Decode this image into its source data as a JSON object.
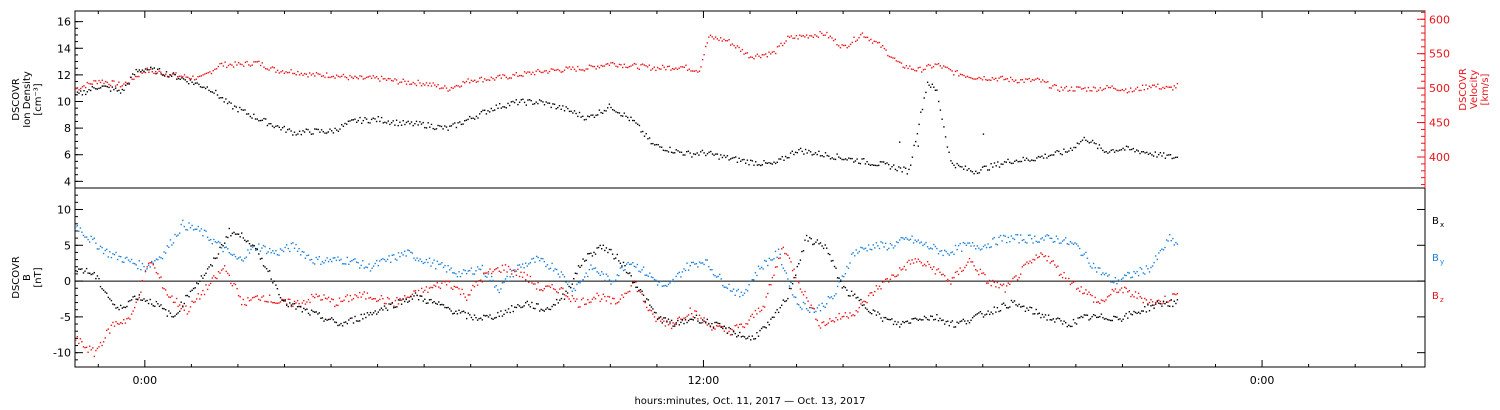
{
  "xaxis": {
    "title": "hours:minutes, Oct. 11, 2017 — Oct. 13, 2017",
    "range_hours": [
      -1.5,
      27.5
    ],
    "tick_labels": [
      {
        "hour": 0,
        "label": "0:00"
      },
      {
        "hour": 12,
        "label": "12:00"
      },
      {
        "hour": 24,
        "label": "0:00"
      }
    ]
  },
  "colors": {
    "black": "#000000",
    "red": "#e8151b",
    "blue": "#1a7fd6"
  },
  "chart_data": [
    {
      "type": "scatter",
      "name": "density-velocity-panel",
      "ylabel_left": [
        "DSCOVR",
        "Ion Density",
        "[cm⁻³]"
      ],
      "ylabel_right": [
        "DSCOVR",
        "Velocity",
        "[km/s]"
      ],
      "ylim_left": [
        3.5,
        16.8
      ],
      "ylim_right": [
        355,
        612
      ],
      "left_ticks": [
        4,
        6,
        8,
        10,
        12,
        14,
        16
      ],
      "right_ticks": [
        400,
        450,
        500,
        550,
        600
      ],
      "series": [
        {
          "axis": "left",
          "color": "#000000",
          "x": [
            -1.5,
            -1,
            -0.5,
            -0.2,
            0,
            0.3,
            0.6,
            1,
            1.4,
            1.8,
            2.1,
            2.4,
            2.8,
            3.2,
            3.6,
            4,
            4.5,
            5,
            5.5,
            6,
            6.5,
            7,
            7.5,
            8,
            8.5,
            9,
            9.5,
            10,
            10.5,
            10.9,
            11.2,
            11.4,
            11.7,
            12,
            12.5,
            13,
            13.5,
            14,
            14.5,
            15,
            15.5,
            16,
            16.4,
            16.8,
            17,
            17.3,
            17.5,
            17.8,
            18.2,
            18.6,
            19,
            19.4,
            19.8,
            20.2,
            20.6,
            21,
            21.4,
            21.8,
            22.2
          ],
          "y": [
            10.5,
            11.2,
            10.8,
            12.3,
            12.5,
            12.3,
            12.0,
            11.5,
            11.0,
            9.8,
            9.3,
            8.8,
            8.2,
            7.7,
            7.8,
            7.8,
            8.6,
            8.7,
            8.4,
            8.3,
            8.0,
            8.8,
            9.6,
            10.0,
            10.0,
            9.5,
            8.8,
            9.7,
            8.5,
            6.8,
            6.5,
            6.3,
            6.1,
            6.2,
            5.8,
            5.5,
            5.3,
            6.4,
            6.1,
            5.8,
            5.5,
            5.2,
            4.8,
            11.5,
            10.8,
            5.5,
            5.1,
            4.8,
            5.2,
            5.6,
            5.7,
            6.0,
            6.3,
            7.3,
            6.3,
            6.5,
            6.3,
            6.0,
            5.8
          ]
        },
        {
          "axis": "right",
          "color": "#e8151b",
          "x": [
            -1.5,
            -1,
            -0.5,
            0,
            0.4,
            0.8,
            1.2,
            1.6,
            2,
            2.4,
            2.8,
            3.2,
            3.6,
            4,
            4.5,
            5,
            5.5,
            6,
            6.5,
            7,
            7.5,
            8,
            8.5,
            9,
            9.5,
            10,
            10.5,
            11,
            11.5,
            11.9,
            12.1,
            12.5,
            13,
            13.5,
            13.8,
            14.2,
            14.6,
            15,
            15.4,
            15.8,
            16.2,
            16.6,
            17,
            17.4,
            17.8,
            18.3,
            18.8,
            19.2,
            19.6,
            20,
            20.4,
            20.8,
            21.2,
            21.6,
            22,
            22.2
          ],
          "y": [
            500,
            512,
            505,
            527,
            522,
            518,
            515,
            535,
            535,
            538,
            527,
            525,
            520,
            520,
            515,
            515,
            510,
            508,
            500,
            513,
            515,
            520,
            525,
            528,
            530,
            537,
            533,
            530,
            532,
            527,
            575,
            570,
            547,
            552,
            573,
            577,
            580,
            560,
            580,
            562,
            535,
            527,
            535,
            523,
            517,
            515,
            512,
            512,
            500,
            500,
            500,
            502,
            497,
            505,
            500,
            505
          ]
        },
        {
          "axis": "left",
          "color": "#000000",
          "x": [
            16.2,
            16.6,
            18.0
          ],
          "y": [
            7.0,
            6.7,
            7.6
          ],
          "name_hidden": true
        }
      ]
    },
    {
      "type": "scatter",
      "name": "magnetic-field-panel",
      "ylabel_left": [
        "DSCOVR",
        "B",
        "[nT]"
      ],
      "ylim": [
        -12,
        13
      ],
      "ticks": [
        -10,
        -5,
        0,
        5,
        10
      ],
      "zero_line": true,
      "legend": [
        "B",
        "B",
        "B"
      ],
      "legend_sub": [
        "x",
        "y",
        "z"
      ],
      "series": [
        {
          "color": "#000000",
          "x": [
            -1.5,
            -1.1,
            -0.6,
            -0.2,
            0.2,
            0.6,
            1,
            1.4,
            1.8,
            2.2,
            2.6,
            3,
            3.4,
            3.8,
            4.2,
            4.6,
            5,
            5.4,
            5.8,
            6.2,
            6.6,
            7,
            7.4,
            7.8,
            8.2,
            8.6,
            9,
            9.4,
            9.8,
            10.2,
            10.6,
            11,
            11.4,
            11.8,
            12.2,
            12.6,
            13,
            13.4,
            13.8,
            14.2,
            14.6,
            15,
            15.4,
            15.8,
            16.2,
            16.6,
            17,
            17.4,
            17.8,
            18.2,
            18.6,
            19,
            19.4,
            19.8,
            20.2,
            20.6,
            21,
            21.4,
            21.8,
            22.2
          ],
          "y": [
            2,
            1,
            -4,
            -2,
            -3,
            -5,
            -1,
            2,
            7,
            6,
            2,
            -3,
            -4,
            -5,
            -6,
            -5,
            -4,
            -3,
            -2,
            -3,
            -4,
            -5,
            -5,
            -4,
            -3,
            -4,
            -2,
            3,
            5,
            3,
            -1,
            -5,
            -6,
            -5,
            -6,
            -7,
            -8,
            -6,
            -2,
            6,
            5,
            -1,
            -3,
            -5,
            -6,
            -5,
            -5,
            -6,
            -5,
            -4,
            -3,
            -4,
            -5,
            -6,
            -5,
            -5,
            -5,
            -4,
            -3,
            -3
          ]
        },
        {
          "color": "#1a7fd6",
          "x": [
            -1.5,
            -1.2,
            -0.8,
            -0.4,
            0,
            0.4,
            0.8,
            1.2,
            1.6,
            2,
            2.4,
            2.8,
            3.2,
            3.6,
            4,
            4.4,
            4.8,
            5.2,
            5.6,
            6,
            6.4,
            6.8,
            7.2,
            7.6,
            8,
            8.4,
            8.8,
            9.2,
            9.6,
            10,
            10.4,
            10.8,
            11.2,
            11.6,
            12,
            12.4,
            12.8,
            13.2,
            13.6,
            14,
            14.4,
            14.8,
            15.2,
            15.6,
            16,
            16.4,
            16.8,
            17.2,
            17.6,
            18,
            18.4,
            18.8,
            19.2,
            19.6,
            20,
            20.4,
            20.8,
            21.2,
            21.6,
            22,
            22.2
          ],
          "y": [
            8,
            6,
            4,
            3,
            2,
            4,
            8,
            7,
            5,
            3,
            5,
            4,
            5,
            3,
            3,
            3,
            2,
            3,
            4,
            3,
            2,
            1,
            2,
            -1,
            2,
            3,
            2,
            -1,
            2,
            0,
            3,
            1,
            -1,
            2,
            3,
            0,
            -2,
            2,
            4,
            -3,
            -4,
            -2,
            4,
            5,
            5,
            6,
            5,
            4,
            5,
            5,
            6,
            6,
            6,
            6,
            5,
            2,
            0,
            1,
            2,
            6,
            5
          ]
        },
        {
          "color": "#e8151b",
          "x": [
            -1.5,
            -1.1,
            -0.7,
            -0.3,
            0.1,
            0.5,
            0.9,
            1.3,
            1.7,
            2.1,
            2.5,
            2.9,
            3.3,
            3.7,
            4.1,
            4.5,
            4.9,
            5.3,
            5.7,
            6.1,
            6.5,
            6.9,
            7.3,
            7.7,
            8.1,
            8.5,
            8.9,
            9.3,
            9.7,
            10.1,
            10.5,
            10.9,
            11.3,
            11.7,
            12.1,
            12.5,
            12.9,
            13.3,
            13.7,
            14.1,
            14.5,
            14.9,
            15.3,
            15.7,
            16.1,
            16.5,
            16.9,
            17.3,
            17.7,
            18.1,
            18.5,
            18.9,
            19.3,
            19.7,
            20.1,
            20.5,
            20.9,
            21.3,
            21.7,
            22.1,
            22.2
          ],
          "y": [
            -8,
            -10,
            -6,
            -5,
            3,
            -2,
            -4,
            -1,
            2,
            -3,
            -2,
            -3,
            -3,
            -2,
            -3,
            -2,
            -2,
            -3,
            -2,
            -1,
            0,
            -2,
            1,
            2,
            1,
            -1,
            -1,
            -3,
            -2,
            -3,
            0,
            -5,
            -6,
            -4,
            -6,
            -7,
            -6,
            -3,
            5,
            -1,
            -6,
            -5,
            -4,
            -1,
            1,
            3,
            2,
            0,
            3,
            0,
            -1,
            2,
            4,
            1,
            -1,
            -3,
            -1,
            -2,
            -3,
            -2,
            -2
          ]
        }
      ]
    }
  ]
}
